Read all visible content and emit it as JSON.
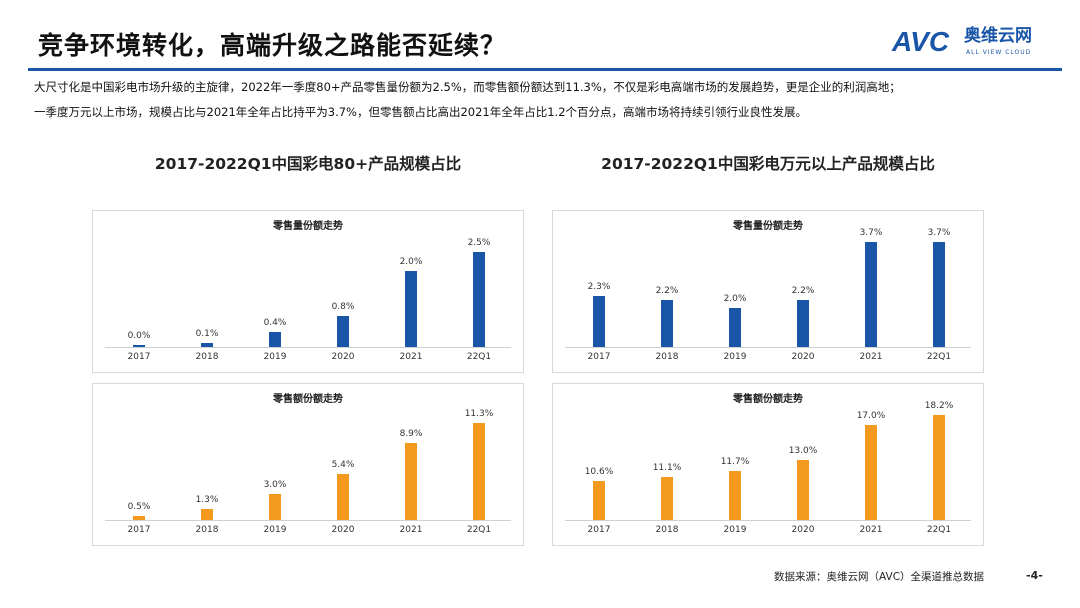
{
  "header": {
    "title": "竞争环境转化，高端升级之路能否延续？",
    "logo_main": "AVC",
    "logo_cn": "奥维云网",
    "logo_en": "ALL VIEW CLOUD"
  },
  "description": [
    "大尺寸化是中国彩电市场升级的主旋律，2022年一季度80+产品零售量份额为2.5%，而零售额份额达到11.3%，不仅是彩电高端市场的发展趋势，更是企业的利润高地；",
    "一季度万元以上市场，规模占比与2021年全年占比持平为3.7%，但零售额占比高出2021年全年占比1.2个百分点，高端市场将持续引领行业良性发展。"
  ],
  "colors": {
    "blue": "#1a56a8",
    "orange": "#f39a1e"
  },
  "chart_data": [
    {
      "group_title": "2017-2022Q1中国彩电80+产品规模占比",
      "title": "零售量份额走势",
      "type": "bar",
      "categories": [
        "2017",
        "2018",
        "2019",
        "2020",
        "2021",
        "22Q1"
      ],
      "values": [
        0.0,
        0.1,
        0.4,
        0.8,
        2.0,
        2.5
      ],
      "labels": [
        "0.0%",
        "0.1%",
        "0.4%",
        "0.8%",
        "2.0%",
        "2.5%"
      ],
      "ylim": [
        0,
        2.75
      ],
      "color": "blue"
    },
    {
      "title": "零售额份额走势",
      "type": "bar",
      "categories": [
        "2017",
        "2018",
        "2019",
        "2020",
        "2021",
        "22Q1"
      ],
      "values": [
        0.5,
        1.3,
        3.0,
        5.4,
        8.9,
        11.3
      ],
      "labels": [
        "0.5%",
        "1.3%",
        "3.0%",
        "5.4%",
        "8.9%",
        "11.3%"
      ],
      "ylim": [
        0,
        12.2
      ],
      "color": "orange"
    },
    {
      "group_title": "2017-2022Q1中国彩电万元以上产品规模占比",
      "title": "零售量份额走势",
      "type": "bar",
      "categories": [
        "2017",
        "2018",
        "2019",
        "2020",
        "2021",
        "22Q1"
      ],
      "values": [
        2.3,
        2.2,
        2.0,
        2.2,
        3.7,
        3.7
      ],
      "labels": [
        "2.3%",
        "2.2%",
        "2.0%",
        "2.2%",
        "3.7%",
        "3.7%"
      ],
      "ylim": [
        1.0,
        3.7
      ],
      "color": "blue"
    },
    {
      "title": "零售额份额走势",
      "type": "bar",
      "categories": [
        "2017",
        "2018",
        "2019",
        "2020",
        "2021",
        "22Q1"
      ],
      "values": [
        10.6,
        11.1,
        11.7,
        13.0,
        17.0,
        18.2
      ],
      "labels": [
        "10.6%",
        "11.1%",
        "11.7%",
        "13.0%",
        "17.0%",
        "18.2%"
      ],
      "ylim": [
        6.1,
        18.2
      ],
      "color": "orange"
    }
  ],
  "footer": {
    "source": "数据来源：奥维云网（AVC）全渠道推总数据",
    "page": "-4-"
  }
}
